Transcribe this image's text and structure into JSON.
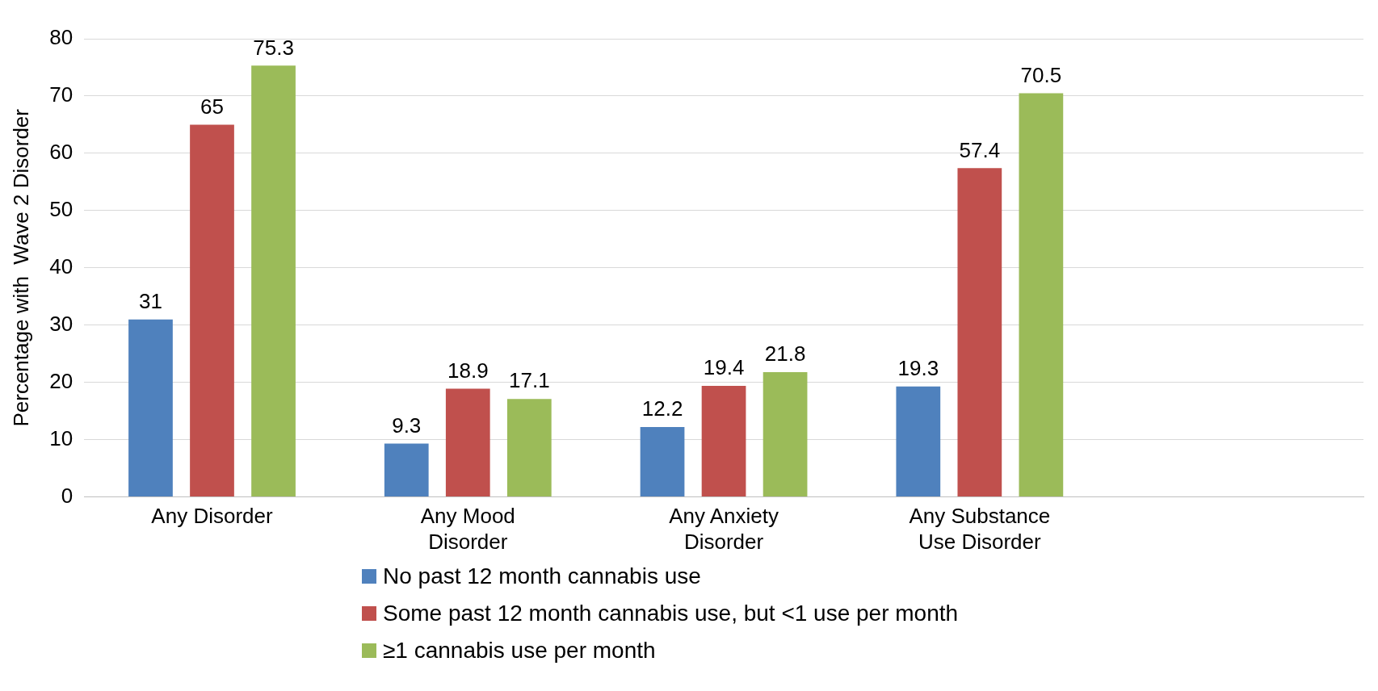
{
  "chart_data": {
    "type": "bar",
    "ylabel": "Percentage with  Wave 2 Disorder",
    "categories": [
      "Any Disorder",
      "Any Mood\nDisorder",
      "Any Anxiety\nDisorder",
      "Any Substance\nUse Disorder",
      null
    ],
    "series": [
      {
        "name": "No past 12 month cannabis use",
        "color": "#4f81bd",
        "values": [
          31,
          9.3,
          12.2,
          19.3,
          null
        ]
      },
      {
        "name": "Some past 12 month cannabis use, but <1 use per month",
        "color": "#c0504d",
        "values": [
          65,
          18.9,
          19.4,
          57.4,
          null
        ]
      },
      {
        "name": "≥1 cannabis use per month",
        "color": "#9bbb59",
        "values": [
          75.3,
          17.1,
          21.8,
          70.5,
          null
        ]
      }
    ],
    "ylim": [
      0,
      80
    ],
    "yticks": [
      0,
      10,
      20,
      30,
      40,
      50,
      60,
      70,
      80
    ],
    "grid": "y",
    "legend": "bottom",
    "data_labels": true
  }
}
